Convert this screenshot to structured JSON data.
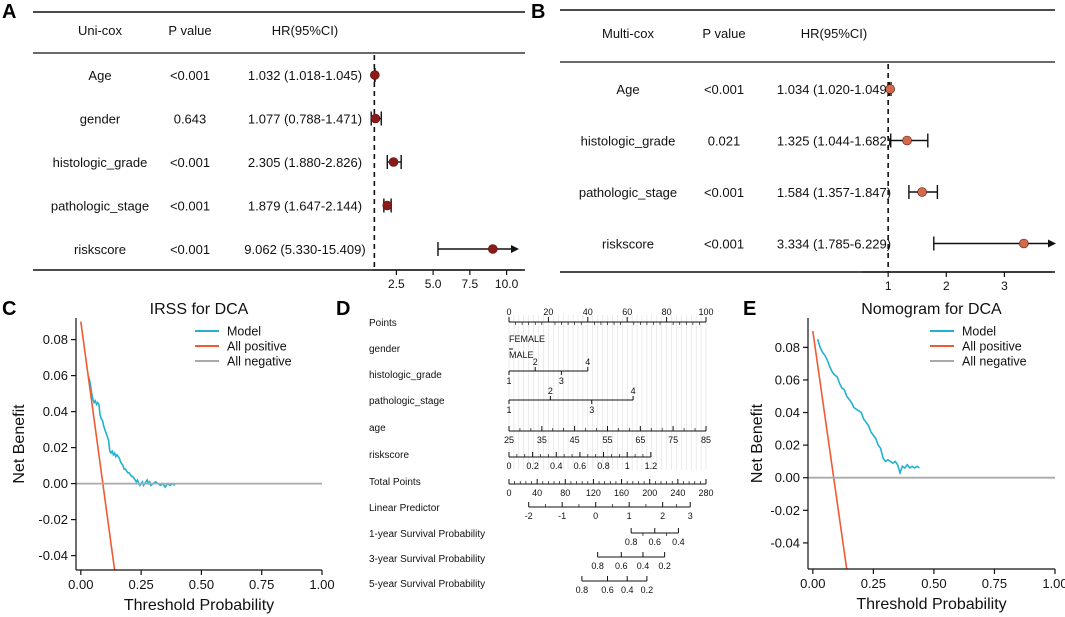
{
  "panel_labels": {
    "a": "A",
    "b": "B",
    "c": "C",
    "d": "D",
    "e": "E"
  },
  "chart_data": [
    {
      "panel": "A",
      "type": "forest",
      "title": "",
      "headers": {
        "name": "Uni-cox",
        "p": "P value",
        "hr": "HR(95%CI)"
      },
      "rows": [
        {
          "name": "Age",
          "p": "<0.001",
          "hr_text": "1.032 (1.018-1.045)",
          "hr": 1.032,
          "lo": 1.018,
          "hi": 1.045,
          "arrow": false
        },
        {
          "name": "gender",
          "p": "0.643",
          "hr_text": "1.077 (0.788-1.471)",
          "hr": 1.077,
          "lo": 0.788,
          "hi": 1.471,
          "arrow": false
        },
        {
          "name": "histologic_grade",
          "p": "<0.001",
          "hr_text": "2.305 (1.880-2.826)",
          "hr": 2.305,
          "lo": 1.88,
          "hi": 2.826,
          "arrow": false
        },
        {
          "name": "pathologic_stage",
          "p": "<0.001",
          "hr_text": "1.879 (1.647-2.144)",
          "hr": 1.879,
          "lo": 1.647,
          "hi": 2.144,
          "arrow": false
        },
        {
          "name": "riskscore",
          "p": "<0.001",
          "hr_text": "9.062 (5.330-15.409)",
          "hr": 9.062,
          "lo": 5.33,
          "hi": 15.409,
          "arrow": true
        }
      ],
      "xlim": [
        0.5,
        10.3
      ],
      "ref_line": 1,
      "xticks": [
        2.5,
        5,
        7.5,
        10
      ],
      "xtick_labels": [
        "2.5",
        "5.0",
        "7.5",
        "10.0"
      ],
      "point_color": "#8B1A1A"
    },
    {
      "panel": "B",
      "type": "forest",
      "title": "",
      "headers": {
        "name": "Multi-cox",
        "p": "P value",
        "hr": "HR(95%CI)"
      },
      "rows": [
        {
          "name": "Age",
          "p": "<0.001",
          "hr_text": "1.034 (1.020-1.049)",
          "hr": 1.034,
          "lo": 1.02,
          "hi": 1.049,
          "arrow": false
        },
        {
          "name": "histologic_grade",
          "p": "0.021",
          "hr_text": "1.325 (1.044-1.682)",
          "hr": 1.325,
          "lo": 1.044,
          "hi": 1.682,
          "arrow": false
        },
        {
          "name": "pathologic_stage",
          "p": "<0.001",
          "hr_text": "1.584 (1.357-1.847)",
          "hr": 1.584,
          "lo": 1.357,
          "hi": 1.847,
          "arrow": false
        },
        {
          "name": "riskscore",
          "p": "<0.001",
          "hr_text": "3.334 (1.785-6.229)",
          "hr": 3.334,
          "lo": 1.785,
          "hi": 6.229,
          "arrow": true
        }
      ],
      "xlim": [
        0.55,
        3.75
      ],
      "ref_line": 1,
      "xticks": [
        1,
        2,
        3
      ],
      "xtick_labels": [
        "1",
        "2",
        "3"
      ],
      "point_color": "#D2694A"
    },
    {
      "panel": "C",
      "type": "line",
      "title": "IRSS for DCA",
      "xlabel": "Threshold Probability",
      "ylabel": "Net Benefit",
      "xlim": [
        -0.02,
        1.0
      ],
      "ylim": [
        -0.048,
        0.092
      ],
      "xticks": [
        0,
        0.25,
        0.5,
        0.75,
        1
      ],
      "xtick_labels": [
        "0.00",
        "0.25",
        "0.50",
        "0.75",
        "1.00"
      ],
      "yticks": [
        -0.04,
        -0.02,
        0,
        0.02,
        0.04,
        0.06,
        0.08
      ],
      "ytick_labels": [
        "-0.04",
        "-0.02",
        "0.00",
        "0.02",
        "0.04",
        "0.06",
        "0.08"
      ],
      "legend": [
        "Model",
        "All positive",
        "All negative"
      ],
      "series": [
        {
          "name": "Model",
          "color": "#20B2D0",
          "x": [
            0.03,
            0.035,
            0.04,
            0.045,
            0.05,
            0.055,
            0.06,
            0.065,
            0.07,
            0.075,
            0.08,
            0.085,
            0.09,
            0.095,
            0.1,
            0.105,
            0.11,
            0.115,
            0.12,
            0.125,
            0.13,
            0.135,
            0.14,
            0.145,
            0.15,
            0.155,
            0.16,
            0.165,
            0.17,
            0.175,
            0.18,
            0.185,
            0.19,
            0.195,
            0.2,
            0.205,
            0.21,
            0.215,
            0.22,
            0.225,
            0.23,
            0.235,
            0.24,
            0.245,
            0.25,
            0.255,
            0.26,
            0.265,
            0.27,
            0.275,
            0.28,
            0.285,
            0.29,
            0.3,
            0.31,
            0.32,
            0.33,
            0.34,
            0.35,
            0.36,
            0.37,
            0.38,
            0.39
          ],
          "values": [
            0.06,
            0.058,
            0.055,
            0.05,
            0.047,
            0.045,
            0.046,
            0.044,
            0.045,
            0.044,
            0.038,
            0.036,
            0.035,
            0.032,
            0.03,
            0.028,
            0.026,
            0.024,
            0.018,
            0.017,
            0.018,
            0.016,
            0.017,
            0.015,
            0.016,
            0.015,
            0.014,
            0.012,
            0.011,
            0.01,
            0.008,
            0.008,
            0.007,
            0.006,
            0.006,
            0.005,
            0.004,
            0.004,
            0.003,
            0.002,
            0.001,
            0.002,
            0.0,
            -0.001,
            0.0,
            0.001,
            -0.001,
            0.0,
            0.001,
            0.002,
            0.0,
            0.001,
            -0.001,
            0.0,
            0.001,
            0.0,
            -0.001,
            0.0,
            -0.002,
            0.0,
            -0.001,
            0.0,
            -0.001
          ]
        },
        {
          "name": "All positive",
          "color": "#F05A32",
          "x": [
            0.0,
            0.14
          ],
          "values": [
            0.09,
            -0.048
          ]
        },
        {
          "name": "All negative",
          "color": "#AAAAAA",
          "x": [
            -0.02,
            1.0
          ],
          "values": [
            0,
            0
          ]
        }
      ]
    },
    {
      "panel": "D",
      "type": "nomogram",
      "points_scale": [
        0,
        100
      ],
      "rows": [
        {
          "label": "Points",
          "range": [
            0,
            100
          ],
          "ticks": [
            0,
            20,
            40,
            60,
            80,
            100
          ],
          "labels": [
            "0",
            "20",
            "40",
            "60",
            "80",
            "100"
          ],
          "minor": 5,
          "above": true
        },
        {
          "label": "gender",
          "range": [
            0,
            1
          ],
          "ticks": [],
          "labels": [],
          "cats": [
            {
              "t": "FEMALE",
              "p": 0
            },
            {
              "t": "MALE",
              "p": 0
            }
          ]
        },
        {
          "label": "histologic_grade",
          "range": [
            0,
            16
          ],
          "ticks": [],
          "labels": [],
          "cats": [
            {
              "t": "2",
              "p": 13.3,
              "up": true
            },
            {
              "t": "4",
              "p": 40,
              "up": true
            },
            {
              "t": "1",
              "p": 0,
              "up": false
            },
            {
              "t": "3",
              "p": 26.6,
              "up": false
            }
          ],
          "span": [
            0,
            40
          ]
        },
        {
          "label": "pathologic_stage",
          "range": [
            0,
            63
          ],
          "ticks": [],
          "labels": [],
          "cats": [
            {
              "t": "2",
              "p": 21,
              "up": true
            },
            {
              "t": "4",
              "p": 63,
              "up": true
            },
            {
              "t": "1",
              "p": 0,
              "up": false
            },
            {
              "t": "3",
              "p": 42,
              "up": false
            }
          ],
          "span": [
            0,
            63
          ]
        },
        {
          "label": "age",
          "range": [
            0,
            100
          ],
          "ticks": [
            0,
            16.67,
            33.3,
            50,
            66.67,
            83.3,
            100
          ],
          "labels": [
            "25",
            "35",
            "45",
            "55",
            "65",
            "75",
            "85"
          ],
          "minor": 2
        },
        {
          "label": "riskscore",
          "range": [
            0,
            72
          ],
          "ticks": [
            0,
            12,
            24,
            36,
            48,
            60,
            72
          ],
          "labels": [
            "0",
            "0.2",
            "0.4",
            "0.6",
            "0.8",
            "1",
            "1.2"
          ],
          "minor": 2
        },
        {
          "label": "Total Points",
          "range": [
            0,
            100
          ],
          "ticks": [
            0,
            14.29,
            28.57,
            42.86,
            57.14,
            71.43,
            85.71,
            100
          ],
          "labels": [
            "0",
            "40",
            "80",
            "120",
            "160",
            "200",
            "240",
            "280"
          ],
          "minor": 4
        },
        {
          "label": "Linear Predictor",
          "range": [
            10,
            92
          ],
          "ticks": [
            10,
            27,
            44,
            61,
            78,
            92
          ],
          "labels": [
            "-2",
            "-1",
            "0",
            "1",
            "2",
            "3"
          ],
          "minor": 1
        },
        {
          "label": "1-year Survival Probability",
          "range": [
            62,
            86
          ],
          "ticks": [
            62,
            74,
            86
          ],
          "labels": [
            "0.8",
            "0.6",
            "0.4"
          ],
          "minor": 1,
          "below": true
        },
        {
          "label": "3-year Survival Probability",
          "range": [
            45,
            79
          ],
          "ticks": [
            45,
            57,
            68,
            79
          ],
          "labels": [
            "0.8",
            "0.6",
            "0.4",
            "0.2"
          ],
          "minor": 0,
          "below": true
        },
        {
          "label": "5-year Survival Probability",
          "range": [
            37,
            70
          ],
          "ticks": [
            37,
            50,
            60,
            70
          ],
          "labels": [
            "0.8",
            "0.6",
            "0.4",
            "0.2"
          ],
          "minor": 0,
          "below": true
        }
      ]
    },
    {
      "panel": "E",
      "type": "line",
      "title": "Nomogram for DCA",
      "xlabel": "Threshold Probability",
      "ylabel": "Net Benefit",
      "xlim": [
        -0.02,
        1.0
      ],
      "ylim": [
        -0.056,
        0.098
      ],
      "xticks": [
        0,
        0.25,
        0.5,
        0.75,
        1
      ],
      "xtick_labels": [
        "0.00",
        "0.25",
        "0.50",
        "0.75",
        "1.00"
      ],
      "yticks": [
        -0.04,
        -0.02,
        0,
        0.02,
        0.04,
        0.06,
        0.08
      ],
      "ytick_labels": [
        "-0.04",
        "-0.02",
        "0.00",
        "0.02",
        "0.04",
        "0.06",
        "0.08"
      ],
      "legend": [
        "Model",
        "All positive",
        "All negative"
      ],
      "series": [
        {
          "name": "Model",
          "color": "#20B2D0",
          "x": [
            0.02,
            0.03,
            0.04,
            0.05,
            0.06,
            0.07,
            0.08,
            0.09,
            0.1,
            0.11,
            0.12,
            0.13,
            0.14,
            0.15,
            0.16,
            0.17,
            0.18,
            0.19,
            0.2,
            0.21,
            0.22,
            0.23,
            0.24,
            0.25,
            0.26,
            0.27,
            0.28,
            0.29,
            0.3,
            0.31,
            0.32,
            0.33,
            0.34,
            0.35,
            0.36,
            0.37,
            0.38,
            0.39,
            0.4,
            0.41,
            0.42,
            0.43,
            0.44
          ],
          "values": [
            0.085,
            0.08,
            0.077,
            0.075,
            0.072,
            0.068,
            0.065,
            0.063,
            0.062,
            0.058,
            0.055,
            0.054,
            0.05,
            0.048,
            0.046,
            0.043,
            0.042,
            0.041,
            0.04,
            0.036,
            0.034,
            0.032,
            0.028,
            0.026,
            0.024,
            0.02,
            0.018,
            0.012,
            0.01,
            0.011,
            0.01,
            0.009,
            0.01,
            0.008,
            0.003,
            0.007,
            0.006,
            0.008,
            0.006,
            0.007,
            0.006,
            0.007,
            0.006
          ]
        },
        {
          "name": "All positive",
          "color": "#F05A32",
          "x": [
            0.0,
            0.14
          ],
          "values": [
            0.09,
            -0.056
          ]
        },
        {
          "name": "All negative",
          "color": "#AAAAAA",
          "x": [
            -0.02,
            1.0
          ],
          "values": [
            0,
            0
          ]
        }
      ]
    }
  ]
}
